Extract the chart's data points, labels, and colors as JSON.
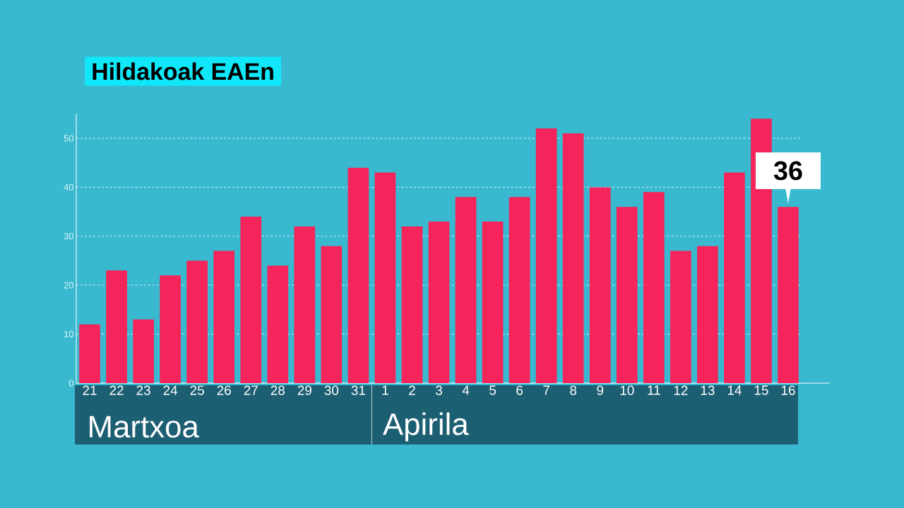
{
  "chart_data": {
    "type": "bar",
    "title": "Hildakoak EAEn",
    "categories": [
      "21",
      "22",
      "23",
      "24",
      "25",
      "26",
      "27",
      "28",
      "29",
      "30",
      "31",
      "1",
      "2",
      "3",
      "4",
      "5",
      "6",
      "7",
      "8",
      "9",
      "10",
      "11",
      "12",
      "13",
      "14",
      "15",
      "16"
    ],
    "values": [
      12,
      23,
      13,
      22,
      25,
      27,
      34,
      24,
      32,
      28,
      44,
      43,
      32,
      33,
      38,
      33,
      38,
      52,
      51,
      40,
      36,
      39,
      27,
      28,
      43,
      54,
      36
    ],
    "value_labels": [
      null,
      null,
      null,
      null,
      null,
      null,
      null,
      null,
      null,
      null,
      null,
      null,
      null,
      null,
      null,
      null,
      null,
      null,
      null,
      null,
      null,
      null,
      null,
      null,
      null,
      null,
      "36"
    ],
    "color": "#f5245a",
    "ylim": [
      0,
      55
    ],
    "yticks": [
      0,
      10,
      20,
      30,
      40,
      50
    ],
    "grid": "y",
    "annotations": [
      "Martxoa",
      "Apirila"
    ]
  }
}
